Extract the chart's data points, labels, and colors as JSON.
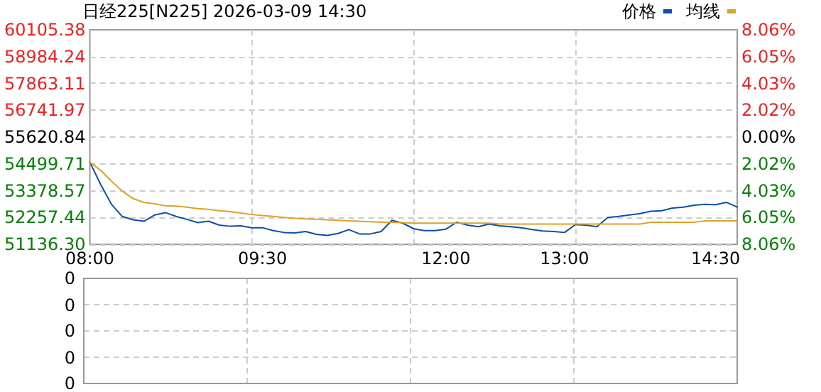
{
  "chart_data": [
    {
      "type": "line",
      "title": "日经225[N225] 2026-03-09 14:30",
      "categories": [
        "08:00",
        null,
        null,
        null,
        null,
        null,
        null,
        null,
        null,
        null,
        null,
        null,
        null,
        null,
        null,
        null,
        "09:30",
        null,
        null,
        null,
        null,
        null,
        null,
        null,
        null,
        null,
        null,
        null,
        null,
        null,
        null,
        null,
        null,
        "12:00",
        null,
        null,
        null,
        null,
        null,
        null,
        null,
        null,
        null,
        null,
        "13:00",
        null,
        null,
        null,
        null,
        null,
        null,
        null,
        null,
        null,
        null,
        null,
        null,
        null,
        "14:30",
        null,
        null
      ],
      "series": [
        {
          "name": "价格",
          "color": "#0d4fa6",
          "values": [
            54570,
            53640,
            52810,
            52300,
            52160,
            52100,
            52360,
            52460,
            52300,
            52180,
            52040,
            52100,
            51940,
            51890,
            51910,
            51830,
            51830,
            51710,
            51630,
            51610,
            51670,
            51550,
            51510,
            51590,
            51750,
            51570,
            51570,
            51670,
            52140,
            52020,
            51790,
            51710,
            51710,
            51770,
            52060,
            51940,
            51870,
            51980,
            51910,
            51870,
            51830,
            51750,
            51690,
            51670,
            51630,
            51960,
            51940,
            51870,
            52260,
            52300,
            52360,
            52420,
            52520,
            52540,
            52650,
            52690,
            52770,
            52810,
            52790,
            52890,
            52690
          ]
        },
        {
          "name": "均线",
          "color": "#dca32a",
          "values": [
            54570,
            54230,
            53780,
            53360,
            53050,
            52890,
            52830,
            52750,
            52730,
            52690,
            52630,
            52600,
            52540,
            52500,
            52440,
            52380,
            52340,
            52300,
            52260,
            52220,
            52200,
            52180,
            52160,
            52140,
            52120,
            52100,
            52080,
            52060,
            52060,
            52040,
            52020,
            52020,
            52020,
            52020,
            52020,
            52020,
            52020,
            52020,
            51980,
            51980,
            51980,
            51980,
            51980,
            51980,
            51980,
            51980,
            51980,
            51980,
            51980,
            51980,
            51980,
            51980,
            52060,
            52060,
            52060,
            52060,
            52060,
            52120,
            52120,
            52120,
            52120
          ]
        }
      ],
      "ylim": [
        51136.3,
        60105.38
      ],
      "yticks": [
        {
          "value": 51136.3,
          "label": "51136.30"
        },
        52257.44,
        53378.57,
        54499.71,
        55620.84,
        56741.97,
        57863.11,
        58984.24,
        60105.38
      ],
      "y2lim": [
        -8.06,
        8.06
      ],
      "y2ticks": [
        {
          "value": -8.06,
          "label": "8.06%"
        },
        {
          "value": -6.05,
          "label": "6.05%"
        },
        {
          "value": -4.03,
          "label": "4.03%"
        },
        {
          "value": -2.02,
          "label": "2.02%"
        },
        {
          "value": 0,
          "label": "0.00%"
        },
        {
          "value": 2.02,
          "label": "2.02%"
        },
        {
          "value": 4.03,
          "label": "4.03%"
        },
        {
          "value": 6.05,
          "label": "6.05%"
        },
        {
          "value": 8.06,
          "label": "8.06%"
        }
      ],
      "grid": true,
      "legend": "top right",
      "marker": "none",
      "line_style": "solid"
    },
    {
      "type": "other",
      "annotations": [
        "0",
        "0",
        "0",
        "0",
        "0"
      ]
    }
  ]
}
